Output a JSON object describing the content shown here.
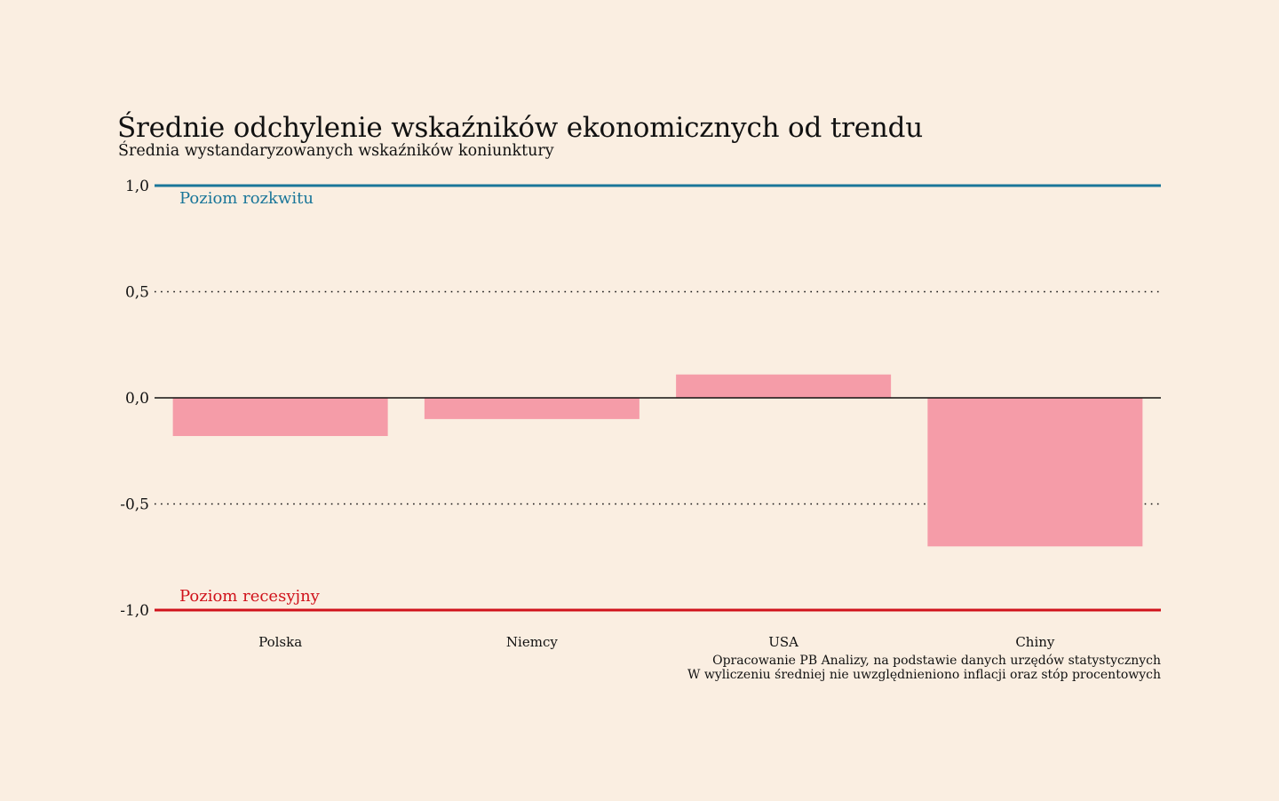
{
  "chart_data": {
    "type": "bar",
    "title": "Średnie odchylenie wskaźników ekonomicznych od trendu",
    "subtitle": "Średnia wystandaryzowanych wskaźników koniunktury",
    "categories": [
      "Polska",
      "Niemcy",
      "USA",
      "Chiny"
    ],
    "values": [
      -0.18,
      -0.1,
      0.11,
      -0.7
    ],
    "ylim": [
      -1.0,
      1.0
    ],
    "yticks": [
      1.0,
      0.5,
      0.0,
      -0.5,
      -1.0
    ],
    "ytick_labels": [
      "1,0",
      "0,5",
      "0,0",
      "-0,5",
      "-1,0"
    ],
    "grid": "dotted at ±0,5",
    "reference_lines": [
      {
        "value": 1.0,
        "label": "Poziom rozkwitu",
        "color": "#1a7699"
      },
      {
        "value": -1.0,
        "label": "Poziom recesyjny",
        "color": "#d0121b"
      }
    ],
    "bar_color": "#f59ca8",
    "footnotes": [
      "Opracowanie PB Analizy, na podstawie danych urzędów statystycznych",
      "W wyliczeniu średniej nie uwzględnieniono inflacji oraz stóp procentowych"
    ]
  }
}
